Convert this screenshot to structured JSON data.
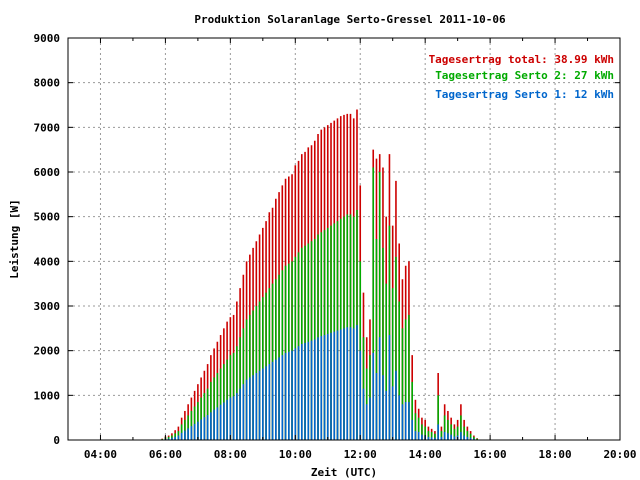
{
  "chart_data": {
    "type": "bar",
    "title": "Produktion Solaranlage Serto-Gressel 2011-10-06",
    "xlabel": "Zeit (UTC)",
    "ylabel": "Leistung [W]",
    "xlim": [
      3.0,
      20.0
    ],
    "ylim": [
      0,
      9000
    ],
    "x_tick_labels": [
      "04:00",
      "06:00",
      "08:00",
      "10:00",
      "12:00",
      "14:00",
      "16:00",
      "18:00",
      "20:00"
    ],
    "x_tick_values": [
      4,
      6,
      8,
      10,
      12,
      14,
      16,
      18,
      20
    ],
    "y_tick_labels": [
      "0",
      "1000",
      "2000",
      "3000",
      "4000",
      "5000",
      "6000",
      "7000",
      "8000",
      "9000"
    ],
    "y_tick_values": [
      0,
      1000,
      2000,
      3000,
      4000,
      5000,
      6000,
      7000,
      8000,
      9000
    ],
    "grid": true,
    "legend_position": "top-right",
    "legend": [
      {
        "text": "Tagesertrag total: 38.99 kWh",
        "color": "#cc0000"
      },
      {
        "text": "Tagesertrag Serto 2: 27 kWh",
        "color": "#00aa00"
      },
      {
        "text": "Tagesertrag Serto 1: 12 kWh",
        "color": "#0066cc"
      }
    ],
    "bar_interval_hours": 0.1,
    "x_start": 5.8,
    "series": [
      {
        "name": "Tagesertrag total: 38.99 kWh",
        "color": "#cc0000",
        "values": [
          0,
          30,
          80,
          100,
          150,
          220,
          300,
          500,
          650,
          800,
          950,
          1100,
          1250,
          1400,
          1550,
          1700,
          1900,
          2050,
          2200,
          2350,
          2500,
          2650,
          2750,
          2800,
          3100,
          3400,
          3700,
          4000,
          4150,
          4300,
          4450,
          4600,
          4750,
          4900,
          5100,
          5200,
          5400,
          5550,
          5700,
          5850,
          5900,
          5950,
          6150,
          6250,
          6400,
          6450,
          6550,
          6600,
          6700,
          6850,
          6950,
          7000,
          7050,
          7100,
          7150,
          7200,
          7250,
          7280,
          7300,
          7300,
          7200,
          7400,
          5700,
          3300,
          2300,
          2700,
          6500,
          6300,
          6400,
          6100,
          5000,
          6400,
          4800,
          5800,
          4400,
          3600,
          3900,
          4000,
          1900,
          900,
          700,
          500,
          450,
          300,
          250,
          200,
          1500,
          300,
          800,
          650,
          500,
          350,
          450,
          800,
          450,
          300,
          200,
          100,
          40,
          0
        ]
      },
      {
        "name": "Tagesertrag Serto 2: 27 kWh",
        "color": "#00aa00",
        "values": [
          0,
          20,
          60,
          70,
          100,
          150,
          200,
          350,
          450,
          550,
          650,
          750,
          850,
          950,
          1050,
          1150,
          1300,
          1400,
          1500,
          1600,
          1700,
          1800,
          1900,
          1950,
          2100,
          2300,
          2500,
          2700,
          2800,
          2900,
          3000,
          3100,
          3200,
          3300,
          3400,
          3500,
          3600,
          3700,
          3800,
          3900,
          3950,
          4000,
          4100,
          4200,
          4300,
          4350,
          4400,
          4450,
          4500,
          4600,
          4650,
          4700,
          4750,
          4800,
          4850,
          4900,
          4950,
          5000,
          5050,
          5050,
          5000,
          5150,
          4000,
          2300,
          1600,
          1900,
          6100,
          4500,
          6000,
          4300,
          3500,
          4800,
          3400,
          4100,
          3100,
          2500,
          2700,
          2800,
          1300,
          600,
          500,
          350,
          300,
          200,
          180,
          140,
          1000,
          200,
          550,
          450,
          350,
          250,
          300,
          550,
          300,
          200,
          140,
          70,
          30,
          0
        ]
      },
      {
        "name": "Tagesertrag Serto 1: 12 kWh",
        "color": "#0066cc",
        "values": [
          0,
          10,
          25,
          30,
          50,
          70,
          100,
          160,
          210,
          260,
          310,
          360,
          410,
          460,
          510,
          560,
          620,
          680,
          730,
          790,
          840,
          900,
          950,
          980,
          1050,
          1150,
          1250,
          1350,
          1400,
          1450,
          1500,
          1550,
          1600,
          1650,
          1700,
          1750,
          1800,
          1850,
          1900,
          1950,
          1975,
          2000,
          2050,
          2100,
          2150,
          2175,
          2200,
          2225,
          2250,
          2300,
          2325,
          2350,
          2375,
          2400,
          2425,
          2450,
          2475,
          2500,
          2525,
          2525,
          2500,
          2575,
          2000,
          1150,
          800,
          950,
          1950,
          1500,
          2300,
          1450,
          1100,
          2350,
          1200,
          1550,
          1000,
          800,
          850,
          850,
          450,
          200,
          180,
          120,
          100,
          70,
          60,
          50,
          350,
          70,
          180,
          150,
          120,
          80,
          100,
          180,
          100,
          70,
          50,
          25,
          10,
          0
        ]
      }
    ]
  }
}
